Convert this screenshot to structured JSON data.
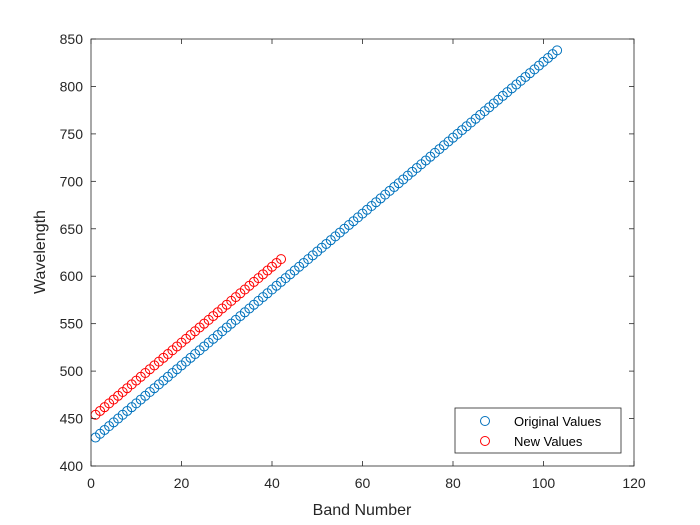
{
  "chart_data": {
    "type": "scatter",
    "xlabel": "Band Number",
    "ylabel": "Wavelength",
    "xlim": [
      0,
      120
    ],
    "ylim": [
      400,
      850
    ],
    "xticks": [
      "0",
      "20",
      "40",
      "60",
      "80",
      "100",
      "120"
    ],
    "yticks": [
      "400",
      "450",
      "500",
      "550",
      "600",
      "650",
      "700",
      "750",
      "800",
      "850"
    ],
    "legend_position": "bottom-right",
    "grid": false,
    "box": true,
    "series": [
      {
        "name": "Original Values",
        "color": "#0072BD",
        "marker": "open-circle",
        "x_start": 1,
        "x_end": 103,
        "y_start": 430,
        "y_end": 838
      },
      {
        "name": "New Values",
        "color": "#FF0000",
        "marker": "open-circle",
        "x_start": 1,
        "x_end": 42,
        "y_start": 454,
        "y_end": 618
      }
    ]
  }
}
